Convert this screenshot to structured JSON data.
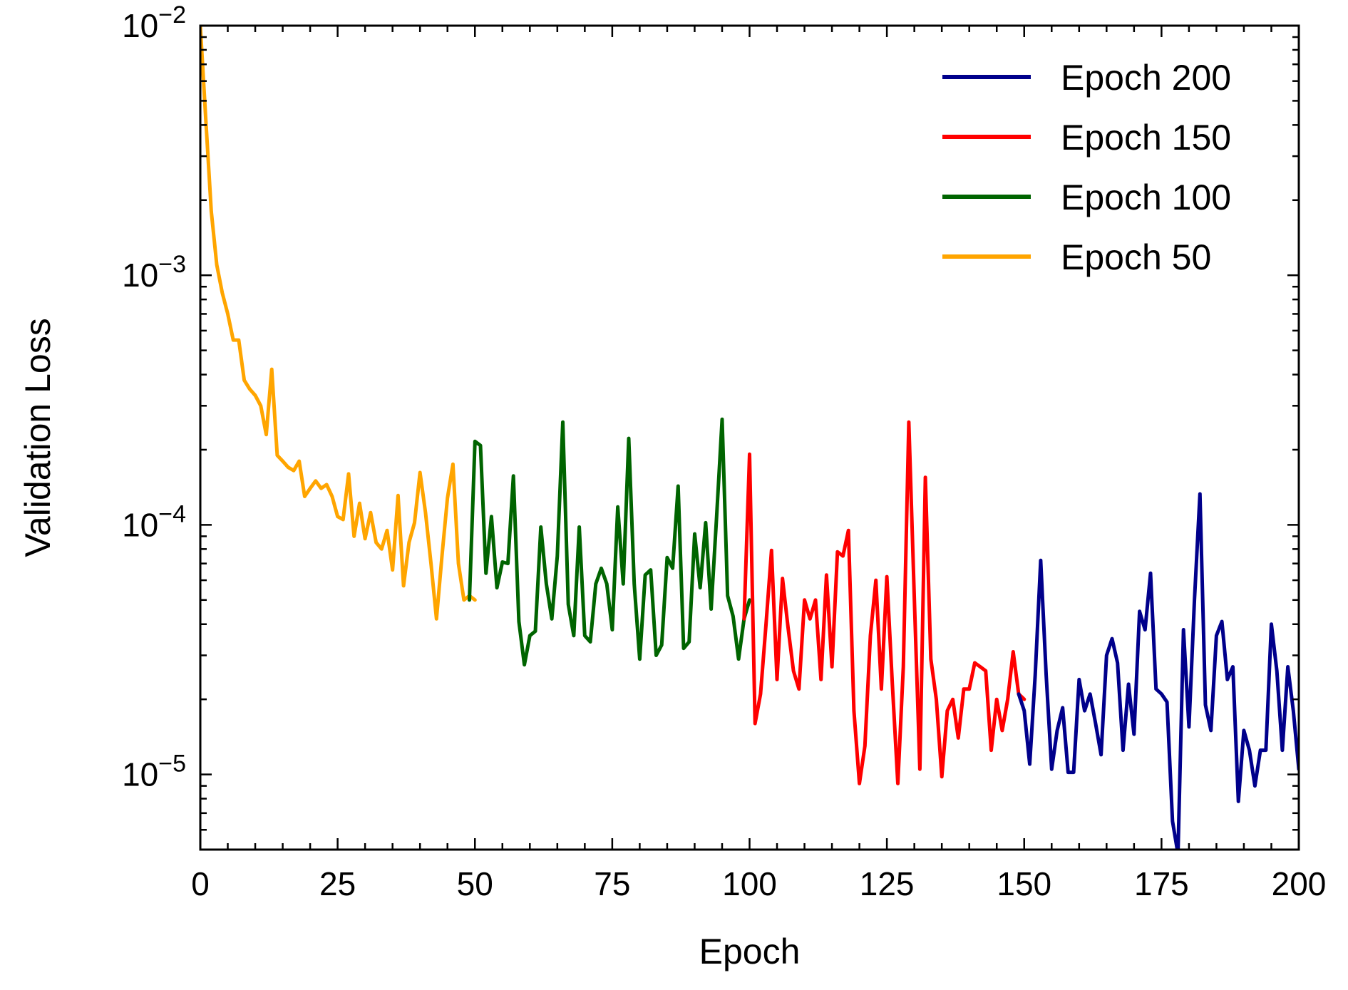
{
  "chart_data": {
    "type": "line",
    "title": "",
    "xlabel": "Epoch",
    "ylabel": "Validation Loss",
    "xlim": [
      0,
      200
    ],
    "ylim": [
      5e-06,
      0.01
    ],
    "yscale": "log",
    "x_ticks": [
      0,
      25,
      50,
      75,
      100,
      125,
      150,
      175,
      200
    ],
    "x_tick_labels": [
      "0",
      "25",
      "50",
      "75",
      "100",
      "125",
      "150",
      "175",
      "200"
    ],
    "y_ticks": [
      {
        "value": 0.01,
        "base": "10",
        "exp": "−2"
      },
      {
        "value": 0.001,
        "base": "10",
        "exp": "−3"
      },
      {
        "value": 0.0001,
        "base": "10",
        "exp": "−4"
      },
      {
        "value": 1e-05,
        "base": "10",
        "exp": "−5"
      }
    ],
    "grid": false,
    "legend_position": "top-right",
    "legend": [
      {
        "label": "Epoch 200",
        "color": "#00008b"
      },
      {
        "label": "Epoch 150",
        "color": "#ff0000"
      },
      {
        "label": "Epoch 100",
        "color": "#006400"
      },
      {
        "label": "Epoch 50",
        "color": "#ffa500"
      }
    ],
    "series": [
      {
        "name": "Epoch 200",
        "color": "#00008b",
        "x": [
          149,
          150,
          151,
          152,
          153,
          154,
          155,
          156,
          157,
          158,
          159,
          160,
          161,
          162,
          163,
          164,
          165,
          166,
          167,
          168,
          169,
          170,
          171,
          172,
          173,
          174,
          175,
          176,
          177,
          178,
          179,
          180,
          181,
          182,
          183,
          184,
          185,
          186,
          187,
          188,
          189,
          190,
          191,
          192,
          193,
          194,
          195,
          196,
          197,
          198,
          199,
          200
        ],
        "y": [
          2.1e-05,
          1.8e-05,
          1.1e-05,
          2.5e-05,
          7.2e-05,
          2.5e-05,
          1.05e-05,
          1.5e-05,
          1.85e-05,
          1.02e-05,
          1.02e-05,
          2.4e-05,
          1.8e-05,
          2.1e-05,
          1.6e-05,
          1.2e-05,
          3e-05,
          3.5e-05,
          2.8e-05,
          1.25e-05,
          2.3e-05,
          1.45e-05,
          4.5e-05,
          3.8e-05,
          6.4e-05,
          2.2e-05,
          2.1e-05,
          1.95e-05,
          6.5e-06,
          4.8e-06,
          3.8e-05,
          1.55e-05,
          5e-05,
          0.000133,
          1.9e-05,
          1.5e-05,
          3.6e-05,
          4.1e-05,
          2.4e-05,
          2.7e-05,
          7.8e-06,
          1.5e-05,
          1.25e-05,
          9e-06,
          1.25e-05,
          1.25e-05,
          4e-05,
          2.6e-05,
          1.25e-05,
          2.7e-05,
          1.8e-05,
          1.05e-05
        ]
      },
      {
        "name": "Epoch 150",
        "color": "#ff0000",
        "x": [
          99,
          100,
          101,
          102,
          103,
          104,
          105,
          106,
          107,
          108,
          109,
          110,
          111,
          112,
          113,
          114,
          115,
          116,
          117,
          118,
          119,
          120,
          121,
          122,
          123,
          124,
          125,
          126,
          127,
          128,
          129,
          130,
          131,
          132,
          133,
          134,
          135,
          136,
          137,
          138,
          139,
          140,
          141,
          142,
          143,
          144,
          145,
          146,
          147,
          148,
          149,
          150
        ],
        "y": [
          4.2e-05,
          0.000192,
          1.6e-05,
          2.1e-05,
          4e-05,
          7.9e-05,
          2.4e-05,
          6.1e-05,
          3.9e-05,
          2.6e-05,
          2.2e-05,
          5e-05,
          4.2e-05,
          5e-05,
          2.4e-05,
          6.3e-05,
          2.7e-05,
          7.8e-05,
          7.5e-05,
          9.5e-05,
          1.8e-05,
          9.2e-06,
          1.3e-05,
          3.6e-05,
          6e-05,
          2.2e-05,
          6.2e-05,
          2.3e-05,
          9.2e-06,
          2.7e-05,
          0.000258,
          5e-05,
          1.05e-05,
          0.000155,
          2.9e-05,
          2e-05,
          9.8e-06,
          1.8e-05,
          2e-05,
          1.4e-05,
          2.2e-05,
          2.2e-05,
          2.8e-05,
          2.7e-05,
          2.6e-05,
          1.25e-05,
          2e-05,
          1.5e-05,
          2e-05,
          3.1e-05,
          2.1e-05,
          2e-05
        ]
      },
      {
        "name": "Epoch 100",
        "color": "#006400",
        "x": [
          49,
          50,
          51,
          52,
          53,
          54,
          55,
          56,
          57,
          58,
          59,
          60,
          61,
          62,
          63,
          64,
          65,
          66,
          67,
          68,
          69,
          70,
          71,
          72,
          73,
          74,
          75,
          76,
          77,
          78,
          79,
          80,
          81,
          82,
          83,
          84,
          85,
          86,
          87,
          88,
          89,
          90,
          91,
          92,
          93,
          94,
          95,
          96,
          97,
          98,
          99,
          100
        ],
        "y": [
          5e-05,
          0.000216,
          0.000208,
          6.4e-05,
          0.000108,
          5.6e-05,
          7.1e-05,
          7e-05,
          0.000157,
          4.1e-05,
          2.75e-05,
          3.6e-05,
          3.75e-05,
          9.8e-05,
          5.8e-05,
          4.2e-05,
          7.5e-05,
          0.000258,
          4.8e-05,
          3.6e-05,
          9.8e-05,
          3.6e-05,
          3.4e-05,
          5.8e-05,
          6.7e-05,
          5.8e-05,
          3.8e-05,
          0.000118,
          5.8e-05,
          0.000222,
          5.8e-05,
          2.9e-05,
          6.3e-05,
          6.6e-05,
          3e-05,
          3.3e-05,
          7.4e-05,
          6.7e-05,
          0.000143,
          3.2e-05,
          3.4e-05,
          9.2e-05,
          5.6e-05,
          0.000102,
          4.6e-05,
          0.000108,
          0.000265,
          5.2e-05,
          4.3e-05,
          2.9e-05,
          4.2e-05,
          5e-05
        ]
      },
      {
        "name": "Epoch 50",
        "color": "#ffa500",
        "x": [
          0,
          1,
          2,
          3,
          4,
          5,
          6,
          7,
          8,
          9,
          10,
          11,
          12,
          13,
          14,
          15,
          16,
          17,
          18,
          19,
          20,
          21,
          22,
          23,
          24,
          25,
          26,
          27,
          28,
          29,
          30,
          31,
          32,
          33,
          34,
          35,
          36,
          37,
          38,
          39,
          40,
          41,
          42,
          43,
          44,
          45,
          46,
          47,
          48,
          49,
          50
        ],
        "y": [
          0.01,
          0.0042,
          0.0018,
          0.0011,
          0.00085,
          0.0007,
          0.00055,
          0.00055,
          0.00038,
          0.00035,
          0.00033,
          0.0003,
          0.00023,
          0.00042,
          0.00019,
          0.00018,
          0.00017,
          0.000165,
          0.00018,
          0.00013,
          0.00014,
          0.00015,
          0.00014,
          0.000145,
          0.00013,
          0.000108,
          0.000105,
          0.00016,
          9e-05,
          0.000122,
          8.8e-05,
          0.000112,
          8.5e-05,
          8e-05,
          9.5e-05,
          6.6e-05,
          0.000131,
          5.7e-05,
          8.5e-05,
          0.000102,
          0.000162,
          0.000112,
          7e-05,
          4.2e-05,
          7.5e-05,
          0.000128,
          0.000175,
          7e-05,
          5e-05,
          5.2e-05,
          5e-05
        ]
      }
    ]
  }
}
